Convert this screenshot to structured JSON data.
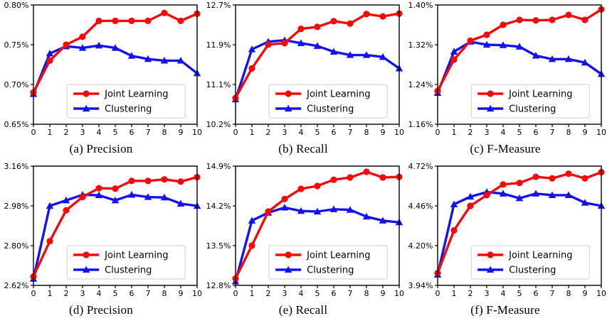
{
  "figure": {
    "description": "Six line charts comparing Joint Learning vs Clustering over iterations 0-10",
    "colors": {
      "joint_learning": "#f30b0b",
      "clustering": "#1313ee",
      "axis": "#000000",
      "legend_border": "#cccccc",
      "legend_bg": "#ffffff",
      "text": "#000000"
    },
    "legend": {
      "items": [
        {
          "label": "Joint Learning",
          "marker": "circle-icon",
          "color": "#f30b0b"
        },
        {
          "label": "Clustering",
          "marker": "triangle-icon",
          "color": "#1313ee"
        }
      ],
      "position": "lower right"
    }
  },
  "chart_data": [
    {
      "id": "a",
      "caption": "(a) Precision",
      "type": "line",
      "x": [
        0,
        1,
        2,
        3,
        4,
        5,
        6,
        7,
        8,
        9,
        10
      ],
      "xlim": [
        0,
        10
      ],
      "xtick_labels": [
        "0",
        "1",
        "2",
        "3",
        "4",
        "5",
        "6",
        "7",
        "8",
        "9",
        "10"
      ],
      "ylim": [
        0.65,
        0.8
      ],
      "ytick_labels": [
        "0.65%",
        "0.70%",
        "0.75%",
        "0.80%"
      ],
      "xlabel": "",
      "ylabel": "",
      "grid": false,
      "legend_position": "lower right",
      "series": [
        {
          "name": "Joint Learning",
          "color": "#f30b0b",
          "marker": "circle",
          "values": [
            0.69,
            0.73,
            0.75,
            0.76,
            0.78,
            0.78,
            0.78,
            0.78,
            0.79,
            0.78,
            0.789
          ]
        },
        {
          "name": "Clustering",
          "color": "#1313ee",
          "marker": "triangle",
          "values": [
            0.688,
            0.739,
            0.748,
            0.746,
            0.749,
            0.746,
            0.736,
            0.732,
            0.73,
            0.73,
            0.714
          ]
        }
      ]
    },
    {
      "id": "b",
      "caption": "(b) Recall",
      "type": "line",
      "x": [
        0,
        1,
        2,
        3,
        4,
        5,
        6,
        7,
        8,
        9,
        10
      ],
      "xlim": [
        0,
        10
      ],
      "xtick_labels": [
        "0",
        "1",
        "2",
        "3",
        "4",
        "5",
        "6",
        "7",
        "8",
        "9",
        "10"
      ],
      "ylim": [
        10.2,
        12.7
      ],
      "ytick_labels": [
        "10.2%",
        "11.1%",
        "11.9%",
        "12.7%"
      ],
      "xlabel": "",
      "ylabel": "",
      "grid": false,
      "legend_position": "lower right",
      "series": [
        {
          "name": "Joint Learning",
          "color": "#f30b0b",
          "marker": "circle",
          "values": [
            10.75,
            11.37,
            11.87,
            11.9,
            12.2,
            12.24,
            12.36,
            12.31,
            12.51,
            12.46,
            12.52
          ]
        },
        {
          "name": "Clustering",
          "color": "#1313ee",
          "marker": "triangle",
          "values": [
            10.72,
            11.77,
            11.93,
            11.96,
            11.9,
            11.84,
            11.72,
            11.65,
            11.65,
            11.61,
            11.37
          ]
        }
      ]
    },
    {
      "id": "c",
      "caption": "(c) F-Measure",
      "type": "line",
      "x": [
        0,
        1,
        2,
        3,
        4,
        5,
        6,
        7,
        8,
        9,
        10
      ],
      "xlim": [
        0,
        10
      ],
      "xtick_labels": [
        "0",
        "1",
        "2",
        "3",
        "4",
        "5",
        "6",
        "7",
        "8",
        "9",
        "10"
      ],
      "ylim": [
        1.16,
        1.4
      ],
      "ytick_labels": [
        "1.16%",
        "1.24%",
        "1.32%",
        "1.40%"
      ],
      "xlabel": "",
      "ylabel": "",
      "grid": false,
      "legend_position": "lower right",
      "series": [
        {
          "name": "Joint Learning",
          "color": "#f30b0b",
          "marker": "circle",
          "values": [
            1.227,
            1.29,
            1.328,
            1.34,
            1.36,
            1.37,
            1.369,
            1.37,
            1.38,
            1.37,
            1.391
          ]
        },
        {
          "name": "Clustering",
          "color": "#1313ee",
          "marker": "triangle",
          "values": [
            1.223,
            1.306,
            1.326,
            1.32,
            1.319,
            1.316,
            1.298,
            1.291,
            1.291,
            1.284,
            1.261
          ]
        }
      ]
    },
    {
      "id": "d",
      "caption": "(d) Precision",
      "type": "line",
      "x": [
        0,
        1,
        2,
        3,
        4,
        5,
        6,
        7,
        8,
        9,
        10
      ],
      "xlim": [
        0,
        10
      ],
      "xtick_labels": [
        "0",
        "1",
        "2",
        "3",
        "4",
        "5",
        "6",
        "7",
        "8",
        "9",
        "10"
      ],
      "ylim": [
        2.62,
        3.16
      ],
      "ytick_labels": [
        "2.62%",
        "2.80%",
        "2.98%",
        "3.16%"
      ],
      "xlabel": "",
      "ylabel": "",
      "grid": false,
      "legend_position": "lower right",
      "series": [
        {
          "name": "Joint Learning",
          "color": "#f30b0b",
          "marker": "circle",
          "values": [
            2.66,
            2.82,
            2.96,
            3.02,
            3.06,
            3.058,
            3.093,
            3.093,
            3.1,
            3.09,
            3.11
          ]
        },
        {
          "name": "Clustering",
          "color": "#1313ee",
          "marker": "triangle",
          "values": [
            2.65,
            2.98,
            3.005,
            3.03,
            3.028,
            3.005,
            3.03,
            3.02,
            3.018,
            2.99,
            2.98
          ]
        }
      ]
    },
    {
      "id": "e",
      "caption": "(e) Recall",
      "type": "line",
      "x": [
        0,
        1,
        2,
        3,
        4,
        5,
        6,
        7,
        8,
        9,
        10
      ],
      "xlim": [
        0,
        10
      ],
      "xtick_labels": [
        "0",
        "1",
        "2",
        "3",
        "4",
        "5",
        "6",
        "7",
        "8",
        "9",
        "10"
      ],
      "ylim": [
        12.8,
        14.9
      ],
      "ytick_labels": [
        "12.8%",
        "13.5%",
        "14.2%",
        "14.9%"
      ],
      "xlabel": "",
      "ylabel": "",
      "grid": false,
      "legend_position": "lower right",
      "series": [
        {
          "name": "Joint Learning",
          "color": "#f30b0b",
          "marker": "circle",
          "values": [
            12.92,
            13.5,
            14.1,
            14.32,
            14.5,
            14.55,
            14.66,
            14.7,
            14.8,
            14.7,
            14.71
          ]
        },
        {
          "name": "Clustering",
          "color": "#1313ee",
          "marker": "triangle",
          "values": [
            12.87,
            13.94,
            14.08,
            14.17,
            14.11,
            14.1,
            14.14,
            14.13,
            14.01,
            13.94,
            13.91
          ]
        }
      ]
    },
    {
      "id": "f",
      "caption": "(f) F-Measure",
      "type": "line",
      "x": [
        0,
        1,
        2,
        3,
        4,
        5,
        6,
        7,
        8,
        9,
        10
      ],
      "xlim": [
        0,
        10
      ],
      "xtick_labels": [
        "0",
        "1",
        "2",
        "3",
        "4",
        "5",
        "6",
        "7",
        "8",
        "9",
        "10"
      ],
      "ylim": [
        3.94,
        4.72
      ],
      "ytick_labels": [
        "3.94%",
        "4.20%",
        "4.46%",
        "4.72%"
      ],
      "xlabel": "",
      "ylabel": "",
      "grid": false,
      "legend_position": "lower right",
      "series": [
        {
          "name": "Joint Learning",
          "color": "#f30b0b",
          "marker": "circle",
          "values": [
            4.02,
            4.3,
            4.46,
            4.53,
            4.6,
            4.61,
            4.65,
            4.64,
            4.67,
            4.64,
            4.68
          ]
        },
        {
          "name": "Clustering",
          "color": "#1313ee",
          "marker": "triangle",
          "values": [
            4.01,
            4.47,
            4.52,
            4.55,
            4.54,
            4.51,
            4.54,
            4.53,
            4.53,
            4.48,
            4.46
          ]
        }
      ]
    }
  ]
}
